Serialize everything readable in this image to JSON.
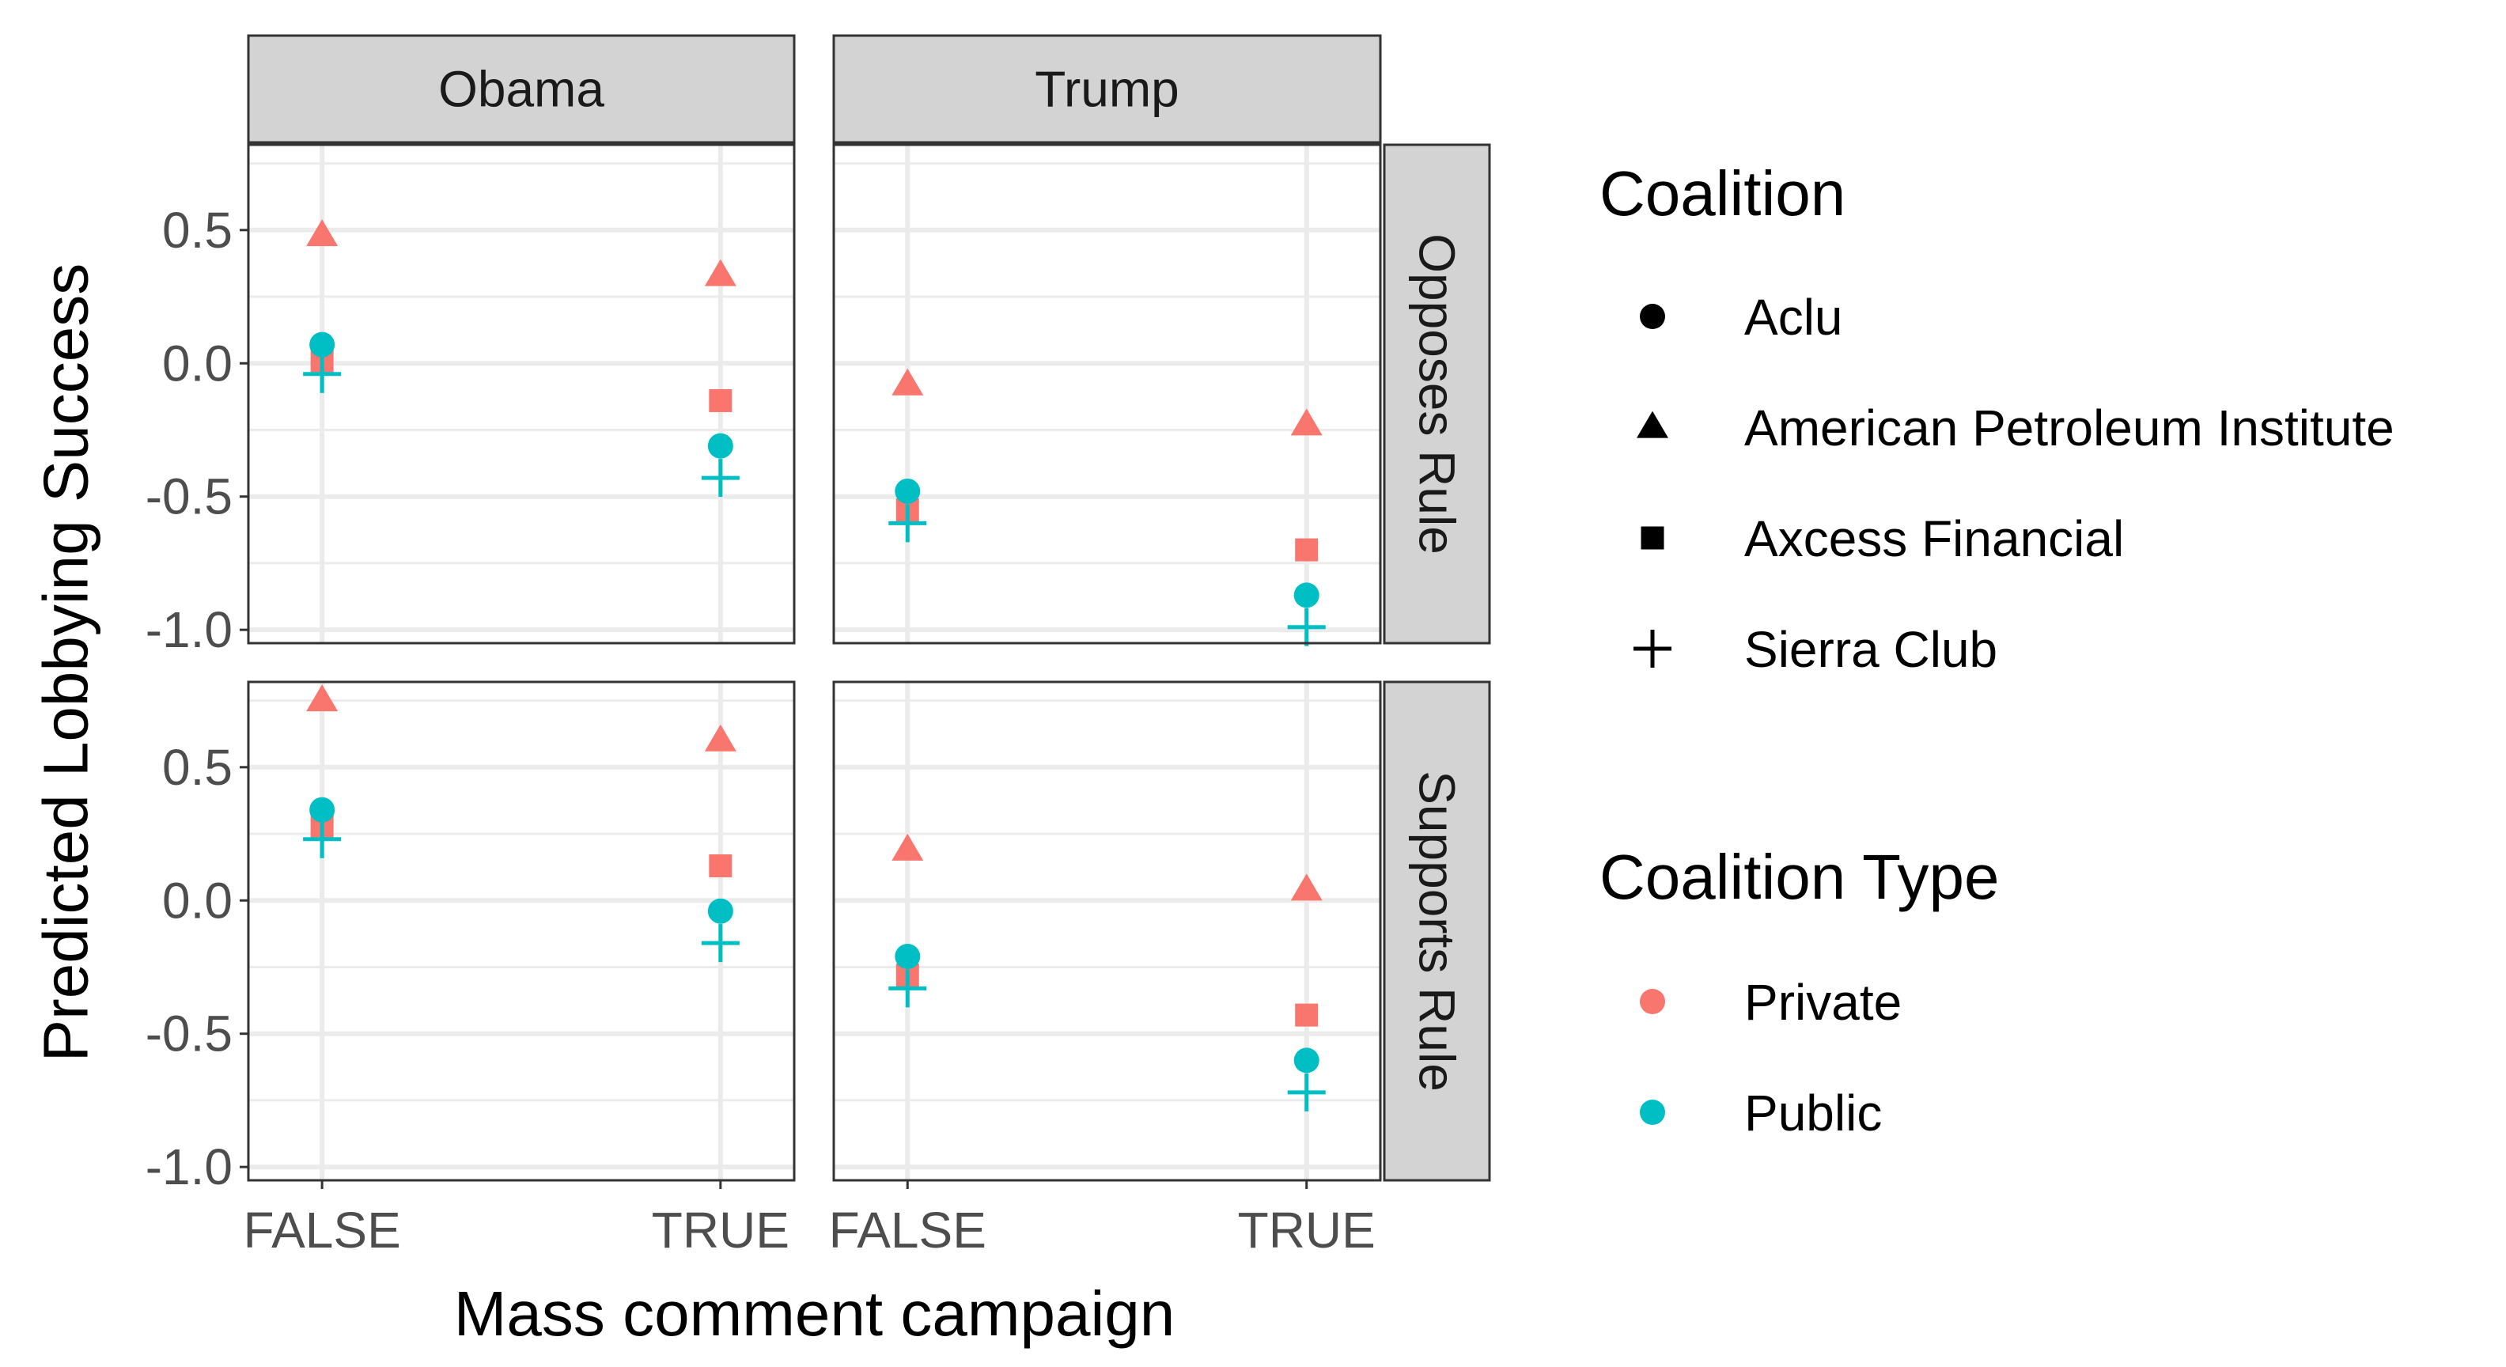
{
  "chart_data": {
    "type": "scatter",
    "xlabel": "Mass comment campaign",
    "ylabel": "Predicted Lobbying Success",
    "x_categories": [
      "FALSE",
      "TRUE"
    ],
    "y_ticks": [
      0.5,
      0.0,
      -0.5,
      -1.0
    ],
    "y_tick_labels": [
      "0.5",
      "0.0",
      "-0.5",
      "-1.0"
    ],
    "ylim": [
      -1.05,
      0.82
    ],
    "grid": true,
    "facet_columns": [
      "Obama",
      "Trump"
    ],
    "facet_rows": [
      "Opposes Rule",
      "Supports Rule"
    ],
    "legend_position": "right",
    "legends": [
      {
        "title": "Coalition",
        "entries": [
          {
            "label": "Aclu",
            "shape": "circle"
          },
          {
            "label": "American Petroleum Institute",
            "shape": "triangle"
          },
          {
            "label": "Axcess Financial",
            "shape": "square"
          },
          {
            "label": "Sierra Club",
            "shape": "plus"
          }
        ]
      },
      {
        "title": "Coalition Type",
        "entries": [
          {
            "label": "Private",
            "color": "#F8766D"
          },
          {
            "label": "Public",
            "color": "#00BFC4"
          }
        ]
      }
    ],
    "colors": {
      "Private": "#F8766D",
      "Public": "#00BFC4"
    },
    "points": [
      {
        "column": "Obama",
        "row": "Opposes Rule",
        "coalition": "American Petroleum Institute",
        "type": "Private",
        "x": "FALSE",
        "y": 0.48
      },
      {
        "column": "Obama",
        "row": "Opposes Rule",
        "coalition": "Axcess Financial",
        "type": "Private",
        "x": "FALSE",
        "y": 0.01
      },
      {
        "column": "Obama",
        "row": "Opposes Rule",
        "coalition": "Aclu",
        "type": "Public",
        "x": "FALSE",
        "y": 0.07
      },
      {
        "column": "Obama",
        "row": "Opposes Rule",
        "coalition": "Sierra Club",
        "type": "Public",
        "x": "FALSE",
        "y": -0.04
      },
      {
        "column": "Obama",
        "row": "Opposes Rule",
        "coalition": "American Petroleum Institute",
        "type": "Private",
        "x": "TRUE",
        "y": 0.33
      },
      {
        "column": "Obama",
        "row": "Opposes Rule",
        "coalition": "Axcess Financial",
        "type": "Private",
        "x": "TRUE",
        "y": -0.14
      },
      {
        "column": "Obama",
        "row": "Opposes Rule",
        "coalition": "Aclu",
        "type": "Public",
        "x": "TRUE",
        "y": -0.31
      },
      {
        "column": "Obama",
        "row": "Opposes Rule",
        "coalition": "Sierra Club",
        "type": "Public",
        "x": "TRUE",
        "y": -0.43
      },
      {
        "column": "Trump",
        "row": "Opposes Rule",
        "coalition": "American Petroleum Institute",
        "type": "Private",
        "x": "FALSE",
        "y": -0.08
      },
      {
        "column": "Trump",
        "row": "Opposes Rule",
        "coalition": "Axcess Financial",
        "type": "Private",
        "x": "FALSE",
        "y": -0.55
      },
      {
        "column": "Trump",
        "row": "Opposes Rule",
        "coalition": "Aclu",
        "type": "Public",
        "x": "FALSE",
        "y": -0.48
      },
      {
        "column": "Trump",
        "row": "Opposes Rule",
        "coalition": "Sierra Club",
        "type": "Public",
        "x": "FALSE",
        "y": -0.6
      },
      {
        "column": "Trump",
        "row": "Opposes Rule",
        "coalition": "American Petroleum Institute",
        "type": "Private",
        "x": "TRUE",
        "y": -0.23
      },
      {
        "column": "Trump",
        "row": "Opposes Rule",
        "coalition": "Axcess Financial",
        "type": "Private",
        "x": "TRUE",
        "y": -0.7
      },
      {
        "column": "Trump",
        "row": "Opposes Rule",
        "coalition": "Aclu",
        "type": "Public",
        "x": "TRUE",
        "y": -0.87
      },
      {
        "column": "Trump",
        "row": "Opposes Rule",
        "coalition": "Sierra Club",
        "type": "Public",
        "x": "TRUE",
        "y": -0.99
      },
      {
        "column": "Obama",
        "row": "Supports Rule",
        "coalition": "American Petroleum Institute",
        "type": "Private",
        "x": "FALSE",
        "y": 0.75
      },
      {
        "column": "Obama",
        "row": "Supports Rule",
        "coalition": "Axcess Financial",
        "type": "Private",
        "x": "FALSE",
        "y": 0.28
      },
      {
        "column": "Obama",
        "row": "Supports Rule",
        "coalition": "Aclu",
        "type": "Public",
        "x": "FALSE",
        "y": 0.34
      },
      {
        "column": "Obama",
        "row": "Supports Rule",
        "coalition": "Sierra Club",
        "type": "Public",
        "x": "FALSE",
        "y": 0.23
      },
      {
        "column": "Obama",
        "row": "Supports Rule",
        "coalition": "American Petroleum Institute",
        "type": "Private",
        "x": "TRUE",
        "y": 0.6
      },
      {
        "column": "Obama",
        "row": "Supports Rule",
        "coalition": "Axcess Financial",
        "type": "Private",
        "x": "TRUE",
        "y": 0.13
      },
      {
        "column": "Obama",
        "row": "Supports Rule",
        "coalition": "Aclu",
        "type": "Public",
        "x": "TRUE",
        "y": -0.04
      },
      {
        "column": "Obama",
        "row": "Supports Rule",
        "coalition": "Sierra Club",
        "type": "Public",
        "x": "TRUE",
        "y": -0.16
      },
      {
        "column": "Trump",
        "row": "Supports Rule",
        "coalition": "American Petroleum Institute",
        "type": "Private",
        "x": "FALSE",
        "y": 0.19
      },
      {
        "column": "Trump",
        "row": "Supports Rule",
        "coalition": "Axcess Financial",
        "type": "Private",
        "x": "FALSE",
        "y": -0.28
      },
      {
        "column": "Trump",
        "row": "Supports Rule",
        "coalition": "Aclu",
        "type": "Public",
        "x": "FALSE",
        "y": -0.21
      },
      {
        "column": "Trump",
        "row": "Supports Rule",
        "coalition": "Sierra Club",
        "type": "Public",
        "x": "FALSE",
        "y": -0.33
      },
      {
        "column": "Trump",
        "row": "Supports Rule",
        "coalition": "American Petroleum Institute",
        "type": "Private",
        "x": "TRUE",
        "y": 0.04
      },
      {
        "column": "Trump",
        "row": "Supports Rule",
        "coalition": "Axcess Financial",
        "type": "Private",
        "x": "TRUE",
        "y": -0.43
      },
      {
        "column": "Trump",
        "row": "Supports Rule",
        "coalition": "Aclu",
        "type": "Public",
        "x": "TRUE",
        "y": -0.6
      },
      {
        "column": "Trump",
        "row": "Supports Rule",
        "coalition": "Sierra Club",
        "type": "Public",
        "x": "TRUE",
        "y": -0.72
      }
    ]
  }
}
